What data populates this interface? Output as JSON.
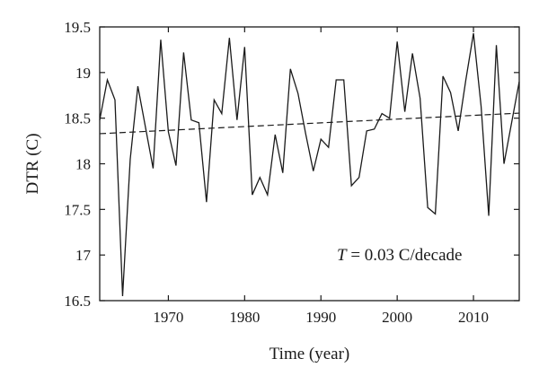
{
  "chart_data": {
    "type": "line",
    "title": "",
    "xlabel": "Time (year)",
    "ylabel": "DTR (C)",
    "xlim": [
      1961,
      2016
    ],
    "ylim": [
      16.5,
      19.5
    ],
    "xticks": [
      1970,
      1980,
      1990,
      2000,
      2010
    ],
    "yticks": [
      16.5,
      17,
      17.5,
      18,
      18.5,
      19,
      19.5
    ],
    "ytick_labels": [
      "16.5",
      "17",
      "17.5",
      "18",
      "18.5",
      "19",
      "19.5"
    ],
    "grid": false,
    "x": [
      1961,
      1962,
      1963,
      1964,
      1965,
      1966,
      1967,
      1968,
      1969,
      1970,
      1971,
      1972,
      1973,
      1974,
      1975,
      1976,
      1977,
      1978,
      1979,
      1980,
      1981,
      1982,
      1983,
      1984,
      1985,
      1986,
      1987,
      1988,
      1989,
      1990,
      1991,
      1992,
      1993,
      1994,
      1995,
      1996,
      1997,
      1998,
      1999,
      2000,
      2001,
      2002,
      2003,
      2004,
      2005,
      2006,
      2007,
      2008,
      2009,
      2010,
      2011,
      2012,
      2013,
      2014,
      2015,
      2016
    ],
    "series": [
      {
        "values": [
          18.48,
          18.92,
          18.7,
          16.55,
          18.05,
          18.85,
          18.4,
          17.95,
          19.36,
          18.35,
          17.98,
          19.22,
          18.48,
          18.45,
          17.58,
          18.7,
          18.55,
          19.38,
          18.48,
          19.28,
          17.66,
          17.85,
          17.66,
          18.32,
          17.9,
          19.04,
          18.77,
          18.33,
          17.92,
          18.27,
          18.18,
          18.92,
          18.92,
          17.76,
          17.85,
          18.36,
          18.38,
          18.55,
          18.5,
          19.34,
          18.57,
          19.21,
          18.72,
          17.52,
          17.45,
          18.96,
          18.78,
          18.36,
          18.92,
          19.43,
          18.63,
          17.43,
          19.3,
          18.0,
          18.45,
          18.9
        ],
        "style": "solid",
        "color": "#1a1a1a"
      },
      {
        "values_at_xlim": [
          18.33,
          18.555
        ],
        "style": "dashed",
        "color": "#1a1a1a"
      }
    ],
    "annotation": {
      "symbol": "T",
      "text": " = 0.03 C/decade"
    }
  }
}
